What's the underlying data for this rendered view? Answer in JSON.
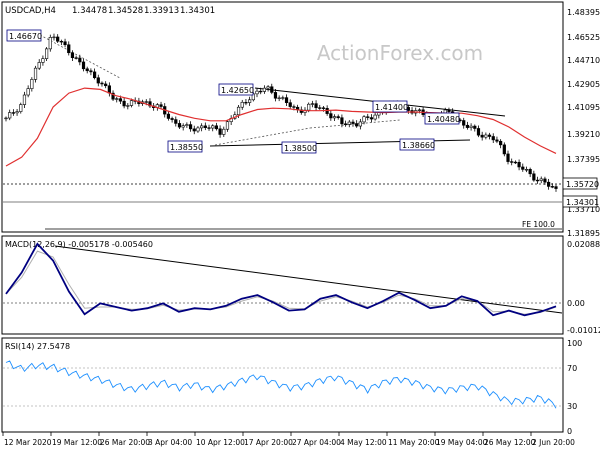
{
  "chart_data": {
    "type": "line",
    "header": {
      "symbol": "USDCAD,H4",
      "ohlc": [
        "1.34478",
        "1.34528",
        "1.33913",
        "1.34301"
      ]
    },
    "watermark": "ActionForex.com",
    "price_panel": {
      "ylim": [
        1.311,
        1.491
      ],
      "y_ticks": [
        "1.48395",
        "1.46525",
        "1.44710",
        "1.42905",
        "1.41095",
        "1.39210",
        "1.37395",
        "1.33710",
        "1.31895"
      ],
      "current_price": "1.34301",
      "candles_close": [
        1.399,
        1.4115,
        1.4395,
        1.4655,
        1.456,
        1.4405,
        1.4315,
        1.416,
        1.411,
        1.4135,
        1.4085,
        1.397,
        1.391,
        1.394,
        1.389,
        1.404,
        1.418,
        1.424,
        1.416,
        1.4055,
        1.4105,
        1.4055,
        1.3955,
        1.3965,
        1.401,
        1.41,
        1.4085,
        1.404,
        1.4015,
        1.4045,
        1.3945,
        1.388,
        1.383,
        1.366,
        1.358,
        1.35,
        1.343
      ],
      "sma_line": [
        1.362,
        1.369,
        1.384,
        1.409,
        1.42,
        1.424,
        1.423,
        1.418,
        1.415,
        1.411,
        1.407,
        1.403,
        1.4,
        1.398,
        1.398,
        1.403,
        1.407,
        1.408,
        1.4075,
        1.406,
        1.406,
        1.4065,
        1.4055,
        1.405,
        1.4045,
        1.405,
        1.405,
        1.4045,
        1.404,
        1.404,
        1.402,
        1.399,
        1.393,
        1.385,
        1.378,
        1.372
      ],
      "annotations": [
        {
          "label": "1.46670",
          "value": 1.4667
        },
        {
          "label": "1.42650",
          "value": 1.4265
        },
        {
          "label": "1.41400",
          "value": 1.414
        },
        {
          "label": "1.40480",
          "value": 1.4048
        },
        {
          "label": "1.38550",
          "value": 1.3855
        },
        {
          "label": "1.38500",
          "value": 1.385
        },
        {
          "label": "1.38660",
          "value": 1.3866
        }
      ],
      "support_level": {
        "label": "1.35720",
        "value": 1.3572
      },
      "fe_level": {
        "label": "FE 100.0",
        "value": 1.3215
      }
    },
    "macd_panel": {
      "label": "MACD(12,26,9) -0.005178 -0.005460",
      "ylim": [
        -0.016,
        0.0235
      ],
      "y_ticks": [
        "0.020884",
        "0.00",
        "-0.010121"
      ],
      "macd": [
        0.0,
        0.009,
        0.021,
        0.014,
        0.001,
        -0.0085,
        -0.004,
        -0.0055,
        -0.007,
        -0.006,
        -0.004,
        -0.0075,
        -0.006,
        -0.0065,
        -0.005,
        -0.002,
        -0.0005,
        -0.0035,
        -0.007,
        -0.0065,
        -0.002,
        -0.0005,
        -0.0035,
        -0.006,
        -0.003,
        0.0005,
        -0.0025,
        -0.006,
        -0.005,
        -0.001,
        -0.003,
        -0.009,
        -0.007,
        -0.009,
        -0.0075,
        -0.0052
      ],
      "signal": [
        0.0,
        0.007,
        0.018,
        0.0155,
        0.004,
        -0.006,
        -0.0055,
        -0.0055,
        -0.0065,
        -0.0062,
        -0.0048,
        -0.0068,
        -0.0062,
        -0.0063,
        -0.0055,
        -0.003,
        -0.0012,
        -0.003,
        -0.006,
        -0.0063,
        -0.003,
        -0.0012,
        -0.003,
        -0.0055,
        -0.0035,
        -0.0005,
        -0.002,
        -0.005,
        -0.005,
        -0.002,
        -0.0028,
        -0.0075,
        -0.0072,
        -0.0085,
        -0.0078,
        -0.0055
      ]
    },
    "rsi_panel": {
      "label": "RSI(14) 27.5478",
      "ylim": [
        0,
        100
      ],
      "y_ticks": [
        "100",
        "70",
        "30",
        "0"
      ],
      "values": [
        75,
        68,
        72,
        70,
        64,
        60,
        56,
        50,
        45,
        49,
        53,
        47,
        51,
        45,
        49,
        55,
        60,
        53,
        47,
        49,
        55,
        59,
        52,
        45,
        53,
        57,
        53,
        47,
        44,
        47,
        49,
        40,
        32,
        33,
        36,
        28
      ]
    },
    "x_tick_labels": [
      "12 Mar 2020",
      "19 Mar 12:00",
      "26 Mar 20:00",
      "3 Apr 04:00",
      "10 Apr 12:00",
      "17 Apr 20:00",
      "27 Apr 04:00",
      "4 May 12:00",
      "11 May 20:00",
      "19 May 04:00",
      "26 May 12:00",
      "2 Jun 20:00"
    ],
    "colors": {
      "candles": "#000000",
      "sma": "#e03030",
      "macd": "#000080",
      "signal": "#b0b0b0",
      "rsi": "#1e90ff",
      "trendline": "#000000",
      "watermark": "#c8c8c8",
      "grid": "#d8d8d8"
    }
  }
}
